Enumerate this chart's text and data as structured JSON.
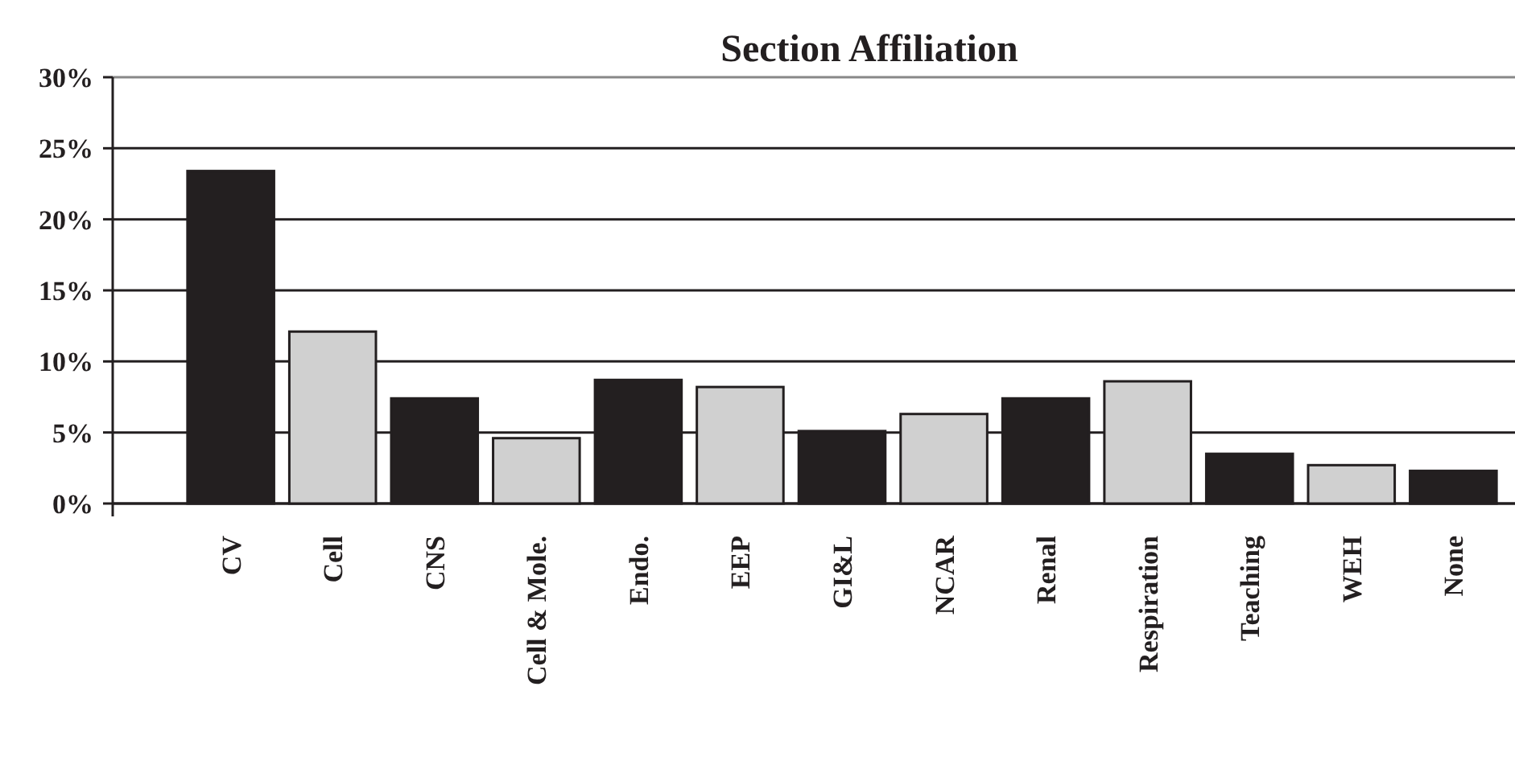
{
  "chart_data": {
    "type": "bar",
    "title": "Section Affiliation",
    "categories": [
      "CV",
      "Cell",
      "CNS",
      "Cell & Mole.",
      "Endo.",
      "EEP",
      "GI&L",
      "NCAR",
      "Renal",
      "Respiration",
      "Teaching",
      "WEH",
      "None"
    ],
    "values": [
      23.4,
      12.1,
      7.4,
      4.6,
      8.7,
      8.2,
      5.1,
      6.3,
      7.4,
      8.6,
      3.5,
      2.7,
      2.3
    ],
    "colors": [
      "#231f20",
      "#d0d0d0",
      "#231f20",
      "#d0d0d0",
      "#231f20",
      "#d0d0d0",
      "#231f20",
      "#d0d0d0",
      "#231f20",
      "#d0d0d0",
      "#231f20",
      "#d0d0d0",
      "#231f20"
    ],
    "ylim": [
      0,
      30
    ],
    "yticks": [
      {
        "value": 0,
        "label": "0%"
      },
      {
        "value": 5,
        "label": "5%"
      },
      {
        "value": 10,
        "label": "10%"
      },
      {
        "value": 15,
        "label": "15%"
      },
      {
        "value": 20,
        "label": "20%"
      },
      {
        "value": 25,
        "label": "25%"
      },
      {
        "value": 30,
        "label": "30%"
      }
    ],
    "grid": "y"
  }
}
